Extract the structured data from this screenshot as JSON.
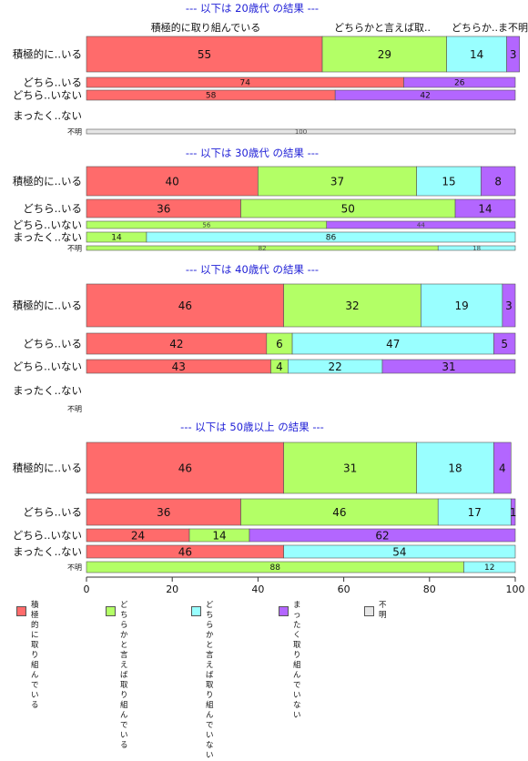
{
  "chart_data": {
    "type": "bar",
    "orientation": "horizontal",
    "stacked": true,
    "xlim": [
      0,
      100
    ],
    "xticks": [
      0,
      20,
      40,
      60,
      80,
      100
    ],
    "colors": [
      "#ff6b6b",
      "#b3ff66",
      "#99ffff",
      "#b366ff",
      "#e6e6e6"
    ],
    "top_labels": [
      "積極的に取り組んでいる",
      "どちらかと言えば取..",
      "どちらか..ま不明"
    ],
    "legend": [
      "積極的に\n取り組んでいる",
      "どちらかと言えば\n取り組んでいる",
      "どちらかと言えば\n取り組んでいない",
      "まったく\n取り組んでいない",
      "不明"
    ],
    "panels": [
      {
        "title": "--- 以下は 20歳代 の結果 ---",
        "rows": [
          {
            "label": "積極的に..いる",
            "values": [
              55,
              29,
              14,
              3,
              0
            ]
          },
          {
            "label": "どちら..いる",
            "values": [
              74,
              0,
              0,
              26,
              0
            ]
          },
          {
            "label": "どちら..いない",
            "values": [
              58,
              0,
              0,
              42,
              0
            ]
          },
          {
            "label": "まったく..ない",
            "values": []
          },
          {
            "label": "不明",
            "values": [
              0,
              0,
              0,
              0,
              100
            ]
          }
        ]
      },
      {
        "title": "--- 以下は 30歳代 の結果 ---",
        "rows": [
          {
            "label": "積極的に..いる",
            "values": [
              40,
              37,
              15,
              8,
              0
            ]
          },
          {
            "label": "どちら..いる",
            "values": [
              36,
              50,
              0,
              14,
              0
            ]
          },
          {
            "label": "どちら..いない",
            "values": [
              0,
              56,
              0,
              44,
              0
            ]
          },
          {
            "label": "まったく..ない",
            "values": [
              0,
              14,
              86,
              0,
              0
            ]
          },
          {
            "label": "不明",
            "values": [
              0,
              82,
              18,
              0,
              0
            ]
          }
        ]
      },
      {
        "title": "--- 以下は 40歳代 の結果 ---",
        "rows": [
          {
            "label": "積極的に..いる",
            "values": [
              46,
              32,
              19,
              3,
              0
            ]
          },
          {
            "label": "どちら..いる",
            "values": [
              42,
              6,
              47,
              5,
              0
            ]
          },
          {
            "label": "どちら..いない",
            "values": [
              43,
              4,
              22,
              31,
              0
            ]
          },
          {
            "label": "まったく..ない",
            "values": []
          },
          {
            "label": "不明",
            "values": []
          }
        ]
      },
      {
        "title": "--- 以下は 50歳以上 の結果 ---",
        "rows": [
          {
            "label": "積極的に..いる",
            "values": [
              46,
              31,
              18,
              4,
              0
            ]
          },
          {
            "label": "どちら..いる",
            "values": [
              36,
              46,
              17,
              1,
              0
            ]
          },
          {
            "label": "どちら..いない",
            "values": [
              24,
              14,
              0,
              62,
              0
            ]
          },
          {
            "label": "まったく..ない",
            "values": [
              46,
              0,
              54,
              0,
              0
            ]
          },
          {
            "label": "不明",
            "values": [
              0,
              88,
              12,
              0,
              0
            ]
          }
        ]
      }
    ]
  }
}
